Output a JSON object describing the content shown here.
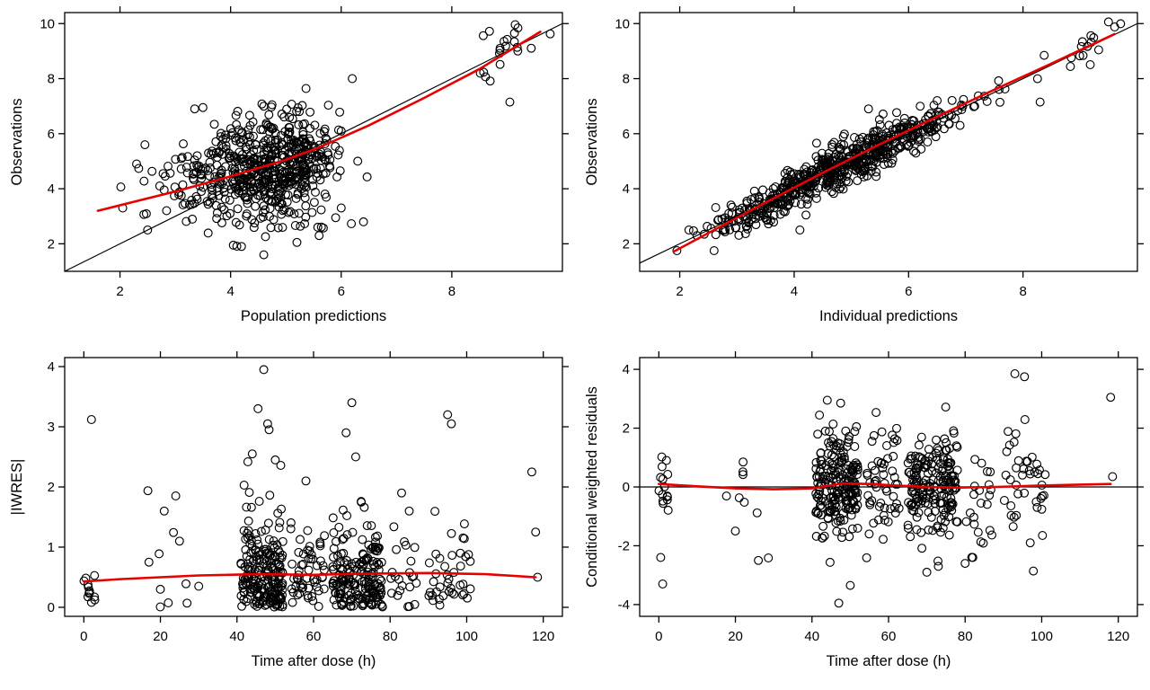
{
  "page": {
    "background": "#ffffff"
  },
  "chart_data": [
    {
      "id": "obs-vs-population-predictions",
      "type": "scatter",
      "title": "",
      "xlabel": "Population predictions",
      "ylabel": "Observations",
      "xlim": [
        1.0,
        10.0
      ],
      "ylim": [
        1.0,
        10.4
      ],
      "xticks": [
        2,
        4,
        6,
        8
      ],
      "yticks": [
        2,
        4,
        6,
        8,
        10
      ],
      "grid": false,
      "legend": "none",
      "ref_line": "identity",
      "point_color": "#000000",
      "loess_color": "#e60000",
      "seed": 101,
      "loess": [
        [
          1.6,
          3.2
        ],
        [
          2.2,
          3.5
        ],
        [
          3.0,
          3.9
        ],
        [
          4.0,
          4.45
        ],
        [
          5.0,
          5.05
        ],
        [
          5.6,
          5.5
        ],
        [
          6.5,
          6.3
        ],
        [
          7.5,
          7.3
        ],
        [
          8.5,
          8.35
        ],
        [
          9.6,
          9.7
        ]
      ],
      "clusters": [
        {
          "kind": "gauss",
          "n": 300,
          "cx": 4.85,
          "cy": 4.9,
          "sx": 0.5,
          "sy": 0.85
        },
        {
          "kind": "gauss",
          "n": 150,
          "cx": 4.2,
          "cy": 4.4,
          "sx": 0.55,
          "sy": 0.8
        },
        {
          "kind": "gauss",
          "n": 90,
          "cx": 5.3,
          "cy": 5.3,
          "sx": 0.4,
          "sy": 0.9
        },
        {
          "kind": "gauss",
          "n": 45,
          "cx": 3.4,
          "cy": 4.0,
          "sx": 0.45,
          "sy": 0.65
        },
        {
          "kind": "gauss",
          "n": 25,
          "cx": 5.0,
          "cy": 2.9,
          "sx": 0.6,
          "sy": 0.45
        },
        {
          "kind": "gauss",
          "n": 16,
          "cx": 9.05,
          "cy": 9.3,
          "sx": 0.3,
          "sy": 0.45
        },
        {
          "kind": "gauss",
          "n": 5,
          "cx": 8.6,
          "cy": 8.35,
          "sx": 0.25,
          "sy": 0.35
        },
        {
          "kind": "gauss",
          "n": 10,
          "cx": 2.7,
          "cy": 3.7,
          "sx": 0.3,
          "sy": 0.5
        }
      ],
      "extra_points": [
        [
          2.45,
          5.6
        ],
        [
          3.35,
          6.9
        ],
        [
          3.5,
          6.95
        ],
        [
          4.6,
          7.0
        ],
        [
          4.75,
          7.05
        ],
        [
          6.2,
          8.0
        ],
        [
          9.05,
          7.15
        ],
        [
          4.6,
          1.6
        ],
        [
          4.05,
          1.95
        ],
        [
          5.2,
          2.05
        ],
        [
          5.6,
          2.3
        ],
        [
          2.05,
          3.3
        ],
        [
          2.3,
          4.9
        ],
        [
          2.5,
          2.5
        ],
        [
          6.3,
          5.0
        ],
        [
          6.0,
          3.3
        ],
        [
          5.9,
          2.95
        ]
      ]
    },
    {
      "id": "obs-vs-individual-predictions",
      "type": "scatter",
      "title": "",
      "xlabel": "Individual predictions",
      "ylabel": "Observations",
      "xlim": [
        1.3,
        10.0
      ],
      "ylim": [
        1.0,
        10.4
      ],
      "xticks": [
        2,
        4,
        6,
        8
      ],
      "yticks": [
        2,
        4,
        6,
        8,
        10
      ],
      "grid": false,
      "legend": "none",
      "ref_line": "identity",
      "point_color": "#000000",
      "loess_color": "#e60000",
      "seed": 202,
      "loess": [
        [
          1.9,
          1.72
        ],
        [
          2.6,
          2.5
        ],
        [
          3.5,
          3.5
        ],
        [
          4.5,
          4.58
        ],
        [
          5.5,
          5.62
        ],
        [
          6.5,
          6.62
        ],
        [
          7.5,
          7.6
        ],
        [
          8.5,
          8.55
        ],
        [
          9.6,
          9.62
        ]
      ],
      "clusters": [
        {
          "kind": "diag",
          "n": 420,
          "cx": 4.9,
          "sx": 0.75,
          "sy": 0.4
        },
        {
          "kind": "diag",
          "n": 120,
          "cx": 3.6,
          "sx": 0.45,
          "sy": 0.35
        },
        {
          "kind": "diag",
          "n": 70,
          "cx": 6.2,
          "sx": 0.35,
          "sy": 0.4
        },
        {
          "kind": "diag",
          "n": 18,
          "cx": 9.05,
          "sx": 0.35,
          "sy": 0.25
        },
        {
          "kind": "diag",
          "n": 10,
          "cx": 2.7,
          "sx": 0.3,
          "sy": 0.25
        },
        {
          "kind": "diag",
          "n": 6,
          "cx": 7.6,
          "sx": 0.3,
          "sy": 0.3
        }
      ],
      "extra_points": [
        [
          8.3,
          7.15
        ],
        [
          2.6,
          1.75
        ],
        [
          2.3,
          2.3
        ],
        [
          6.9,
          6.3
        ],
        [
          4.1,
          2.5
        ],
        [
          5.3,
          6.9
        ],
        [
          6.5,
          7.2
        ],
        [
          1.95,
          1.75
        ]
      ]
    },
    {
      "id": "iwres-vs-time",
      "type": "scatter",
      "title": "",
      "xlabel": "Time after dose (h)",
      "ylabel": "|IWRES|",
      "xlim": [
        -5,
        125
      ],
      "ylim": [
        -0.15,
        4.15
      ],
      "xticks": [
        0,
        20,
        40,
        60,
        80,
        100,
        120
      ],
      "yticks": [
        0,
        1,
        2,
        3,
        4
      ],
      "grid": false,
      "legend": "none",
      "ref_line": "none",
      "point_color": "#000000",
      "loess_color": "#e60000",
      "seed": 303,
      "loess": [
        [
          0,
          0.43
        ],
        [
          10,
          0.47
        ],
        [
          20,
          0.5
        ],
        [
          30,
          0.53
        ],
        [
          45,
          0.55
        ],
        [
          60,
          0.54
        ],
        [
          75,
          0.56
        ],
        [
          90,
          0.57
        ],
        [
          105,
          0.55
        ],
        [
          118,
          0.5
        ]
      ],
      "clusters": [
        {
          "kind": "band",
          "n": 12,
          "x0": 0,
          "x1": 3,
          "ydist": "half",
          "ysd": 0.45
        },
        {
          "kind": "band",
          "n": 7,
          "x0": 16,
          "x1": 31,
          "ydist": "half",
          "ysd": 0.8
        },
        {
          "kind": "band",
          "n": 210,
          "x0": 41,
          "x1": 52,
          "ydist": "half",
          "ysd": 0.75
        },
        {
          "kind": "band",
          "n": 55,
          "x0": 54,
          "x1": 63,
          "ydist": "half",
          "ysd": 0.8
        },
        {
          "kind": "band",
          "n": 190,
          "x0": 65,
          "x1": 78,
          "ydist": "half",
          "ysd": 0.7
        },
        {
          "kind": "band",
          "n": 22,
          "x0": 80,
          "x1": 87,
          "ydist": "half",
          "ysd": 0.8
        },
        {
          "kind": "band",
          "n": 40,
          "x0": 90,
          "x1": 101,
          "ydist": "half",
          "ysd": 0.7
        }
      ],
      "extra_points": [
        [
          2,
          3.12
        ],
        [
          47,
          3.95
        ],
        [
          45.5,
          3.3
        ],
        [
          48,
          3.05
        ],
        [
          44,
          2.55
        ],
        [
          50,
          2.45
        ],
        [
          70,
          3.4
        ],
        [
          68.5,
          2.9
        ],
        [
          71,
          2.5
        ],
        [
          58,
          2.1
        ],
        [
          95,
          3.2
        ],
        [
          96,
          3.05
        ],
        [
          83,
          1.9
        ],
        [
          85,
          1.6
        ],
        [
          117,
          2.25
        ],
        [
          118,
          1.25
        ],
        [
          118.5,
          0.5
        ],
        [
          24,
          1.85
        ],
        [
          21,
          1.6
        ],
        [
          25,
          1.1
        ],
        [
          17,
          0.75
        ],
        [
          30,
          0.35
        ],
        [
          20,
          0.3
        ]
      ]
    },
    {
      "id": "cwres-vs-time",
      "type": "scatter",
      "title": "",
      "xlabel": "Time after dose (h)",
      "ylabel": "Conditional weighted residuals",
      "xlim": [
        -5,
        125
      ],
      "ylim": [
        -4.4,
        4.4
      ],
      "xticks": [
        0,
        20,
        40,
        60,
        80,
        100,
        120
      ],
      "yticks": [
        -4,
        -2,
        0,
        2,
        4
      ],
      "grid": false,
      "legend": "none",
      "ref_line": "zero",
      "point_color": "#000000",
      "loess_color": "#e60000",
      "seed": 404,
      "loess": [
        [
          0,
          0.1
        ],
        [
          10,
          0.02
        ],
        [
          20,
          -0.05
        ],
        [
          30,
          -0.08
        ],
        [
          40,
          -0.05
        ],
        [
          48,
          0.12
        ],
        [
          55,
          0.1
        ],
        [
          62,
          0.05
        ],
        [
          70,
          0.0
        ],
        [
          78,
          -0.02
        ],
        [
          88,
          0.0
        ],
        [
          100,
          0.05
        ],
        [
          110,
          0.08
        ],
        [
          118,
          0.1
        ]
      ],
      "clusters": [
        {
          "kind": "band",
          "n": 14,
          "x0": 0,
          "x1": 3,
          "ydist": "norm",
          "ymu": 0.1,
          "ysd": 0.6
        },
        {
          "kind": "band",
          "n": 7,
          "x0": 16,
          "x1": 31,
          "ydist": "norm",
          "ymu": -0.3,
          "ysd": 1.1
        },
        {
          "kind": "band",
          "n": 210,
          "x0": 41,
          "x1": 52,
          "ydist": "norm",
          "ymu": 0.1,
          "ysd": 0.9
        },
        {
          "kind": "band",
          "n": 55,
          "x0": 54,
          "x1": 63,
          "ydist": "norm",
          "ymu": 0.1,
          "ysd": 0.9
        },
        {
          "kind": "band",
          "n": 190,
          "x0": 65,
          "x1": 78,
          "ydist": "norm",
          "ymu": 0,
          "ysd": 0.85
        },
        {
          "kind": "band",
          "n": 22,
          "x0": 80,
          "x1": 87,
          "ydist": "norm",
          "ymu": -0.2,
          "ysd": 1.0
        },
        {
          "kind": "band",
          "n": 40,
          "x0": 90,
          "x1": 101,
          "ydist": "norm",
          "ymu": 0.2,
          "ysd": 0.9
        }
      ],
      "extra_points": [
        [
          1,
          -3.3
        ],
        [
          47,
          -3.95
        ],
        [
          50,
          -3.35
        ],
        [
          44,
          2.95
        ],
        [
          47.5,
          2.85
        ],
        [
          93,
          3.85
        ],
        [
          95.5,
          3.75
        ],
        [
          118,
          3.05
        ],
        [
          26,
          -2.5
        ],
        [
          20,
          -1.5
        ],
        [
          22,
          0.85
        ],
        [
          80,
          -2.6
        ],
        [
          82,
          -2.4
        ],
        [
          70,
          -2.9
        ],
        [
          73,
          -2.7
        ],
        [
          97,
          -1.9
        ],
        [
          2,
          0.9
        ],
        [
          0.5,
          -2.4
        ],
        [
          118.5,
          0.35
        ]
      ]
    }
  ]
}
